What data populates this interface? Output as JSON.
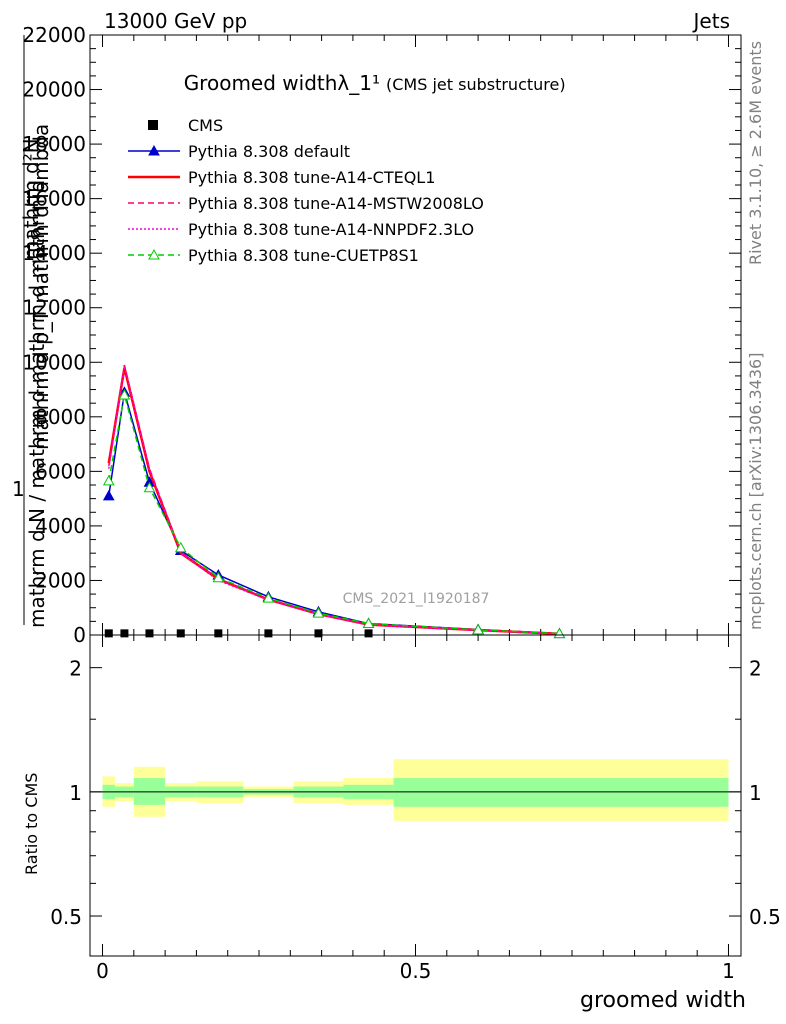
{
  "header": {
    "beam_label": "13000 GeV pp",
    "process_label": "Jets",
    "rivet_label": "Rivet 3.1.10, ≥ 2.6M events",
    "mcplots_label": "mcplots.cern.ch [arXiv:1306.3436]"
  },
  "chart_data": [
    {
      "type": "line",
      "title": "Groomed widthλ_1¹",
      "subtitle": "(CMS jet substructure)",
      "watermark": "CMS_2021_I1920187",
      "ylabel_top": "mathrm d²N",
      "ylabel_mid": "mathrm d p_T mathrm d lambda",
      "ylabel_one": "1",
      "ylabel_bottom": "mathrm d N / mathrm d mathrm d mathrm d",
      "xlabel": "groomed width",
      "xlim": [
        -0.02,
        1.02
      ],
      "ylim": [
        0,
        22000
      ],
      "yticks": [
        0,
        2000,
        4000,
        6000,
        8000,
        10000,
        12000,
        14000,
        16000,
        18000,
        20000,
        22000
      ],
      "ytick_labels": [
        "0",
        "2000",
        "4000",
        "6000",
        "8000",
        "10000",
        "12000",
        "14000",
        "16000",
        "18000",
        "20000",
        "22000"
      ],
      "legend_position": "top-left",
      "x": [
        0.01,
        0.035,
        0.075,
        0.125,
        0.185,
        0.265,
        0.345,
        0.425,
        0.6,
        0.73
      ],
      "series": [
        {
          "name": "CMS",
          "color": "#000000",
          "style": "data-marker",
          "values": [
            60,
            60,
            60,
            60,
            60,
            60,
            60,
            60,
            null,
            null
          ]
        },
        {
          "name": "Pythia 8.308 default",
          "color": "#0000cc",
          "style": "solid-triangle",
          "values": [
            5100,
            8900,
            5600,
            3100,
            2200,
            1400,
            850,
            420,
            200,
            50
          ]
        },
        {
          "name": "Pythia 8.308 tune-A14-CTEQL1",
          "color": "#ff0000",
          "style": "solid",
          "values": [
            6300,
            9800,
            6000,
            3000,
            2050,
            1300,
            770,
            380,
            180,
            45
          ]
        },
        {
          "name": "Pythia 8.308 tune-A14-MSTW2008LO",
          "color": "#ff0066",
          "style": "dashed",
          "values": [
            6200,
            9900,
            6100,
            3050,
            2050,
            1300,
            770,
            380,
            180,
            45
          ]
        },
        {
          "name": "Pythia 8.308 tune-A14-NNPDF2.3LO",
          "color": "#ff00cc",
          "style": "dotted",
          "values": [
            6100,
            9850,
            6050,
            3000,
            2000,
            1280,
            760,
            370,
            175,
            45
          ]
        },
        {
          "name": "Pythia 8.308 tune-CUETP8S1",
          "color": "#00cc00",
          "style": "dashed-open-triangle",
          "values": [
            5650,
            8800,
            5400,
            3200,
            2100,
            1350,
            800,
            420,
            190,
            50
          ]
        }
      ]
    },
    {
      "type": "area",
      "ylabel": "Ratio to CMS",
      "xlabel": "groomed width",
      "xlim": [
        -0.02,
        1.02
      ],
      "ylim": [
        0.4,
        2.4
      ],
      "yscale": "log",
      "yticks": [
        0.5,
        1,
        2
      ],
      "ytick_labels": [
        "0.5",
        "1",
        "2"
      ],
      "xticks": [
        0,
        0.5,
        1
      ],
      "xtick_labels": [
        "0",
        "0.5",
        "1"
      ],
      "reference_line": 1,
      "band_colors": {
        "inner": "#99ff99",
        "outer": "#ffff99"
      },
      "bins": [
        {
          "lo": 0.0,
          "hi": 0.02,
          "outer": [
            0.92,
            1.09
          ],
          "inner": [
            0.96,
            1.04
          ]
        },
        {
          "lo": 0.02,
          "hi": 0.05,
          "outer": [
            0.95,
            1.05
          ],
          "inner": [
            0.97,
            1.03
          ]
        },
        {
          "lo": 0.05,
          "hi": 0.1,
          "outer": [
            0.87,
            1.15
          ],
          "inner": [
            0.93,
            1.08
          ]
        },
        {
          "lo": 0.1,
          "hi": 0.15,
          "outer": [
            0.95,
            1.05
          ],
          "inner": [
            0.97,
            1.03
          ]
        },
        {
          "lo": 0.15,
          "hi": 0.225,
          "outer": [
            0.94,
            1.06
          ],
          "inner": [
            0.97,
            1.03
          ]
        },
        {
          "lo": 0.225,
          "hi": 0.305,
          "outer": [
            0.97,
            1.03
          ],
          "inner": [
            0.985,
            1.015
          ]
        },
        {
          "lo": 0.305,
          "hi": 0.385,
          "outer": [
            0.94,
            1.06
          ],
          "inner": [
            0.97,
            1.03
          ]
        },
        {
          "lo": 0.385,
          "hi": 0.465,
          "outer": [
            0.93,
            1.08
          ],
          "inner": [
            0.96,
            1.04
          ]
        },
        {
          "lo": 0.465,
          "hi": 1.0,
          "outer": [
            0.85,
            1.2
          ],
          "inner": [
            0.92,
            1.08
          ]
        }
      ]
    }
  ]
}
